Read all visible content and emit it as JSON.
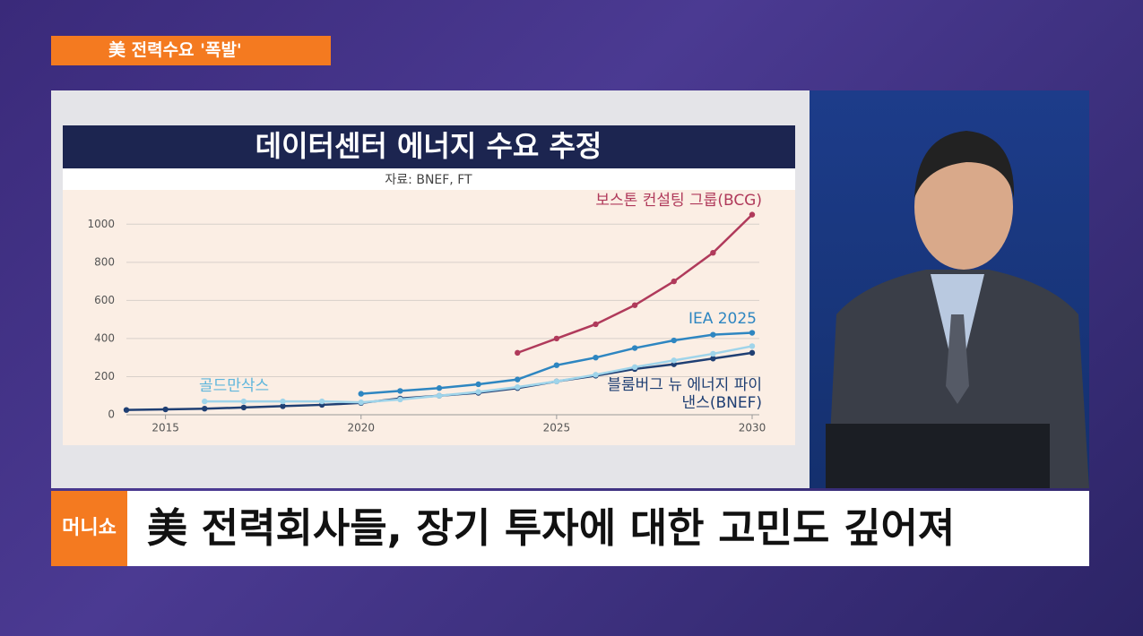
{
  "header": {
    "tag": "美 전력수요 '폭발'"
  },
  "chart_data": {
    "type": "line",
    "title": "데이터센터 에너지 수요 추정",
    "subtitle": "자료: BNEF, FT",
    "x": [
      2014,
      2015,
      2016,
      2017,
      2018,
      2019,
      2020,
      2021,
      2022,
      2023,
      2024,
      2025,
      2026,
      2027,
      2028,
      2029,
      2030
    ],
    "series": [
      {
        "name": "블룸버그 뉴 에너지 파이낸스(BNEF)",
        "color": "#1f3f73",
        "values": [
          25,
          28,
          32,
          38,
          45,
          52,
          62,
          85,
          100,
          115,
          140,
          175,
          205,
          240,
          265,
          295,
          325
        ]
      },
      {
        "name": "골드만삭스",
        "color": "#9fd4ea",
        "values": [
          null,
          null,
          70,
          70,
          70,
          70,
          65,
          80,
          100,
          120,
          145,
          175,
          210,
          250,
          285,
          320,
          360
        ]
      },
      {
        "name": "IEA 2025",
        "color": "#2e86c1",
        "values": [
          null,
          null,
          null,
          null,
          null,
          null,
          110,
          125,
          140,
          160,
          185,
          260,
          300,
          350,
          390,
          420,
          430
        ]
      },
      {
        "name": "보스톤 컨설팅 그룹(BCG)",
        "color": "#b03a5b",
        "values": [
          null,
          null,
          null,
          null,
          null,
          null,
          null,
          null,
          null,
          null,
          325,
          400,
          475,
          575,
          700,
          850,
          1050
        ]
      }
    ],
    "xlim": [
      2014,
      2030
    ],
    "xticks": [
      2015,
      2020,
      2025,
      2030
    ],
    "ylim": [
      0,
      1100
    ],
    "yticks": [
      0,
      200,
      400,
      600,
      800,
      1000
    ],
    "grid": true
  },
  "caption": {
    "logo": "머니쇼",
    "headline": "美 전력회사들, 장기 투자에 대한 고민도 깊어져"
  }
}
